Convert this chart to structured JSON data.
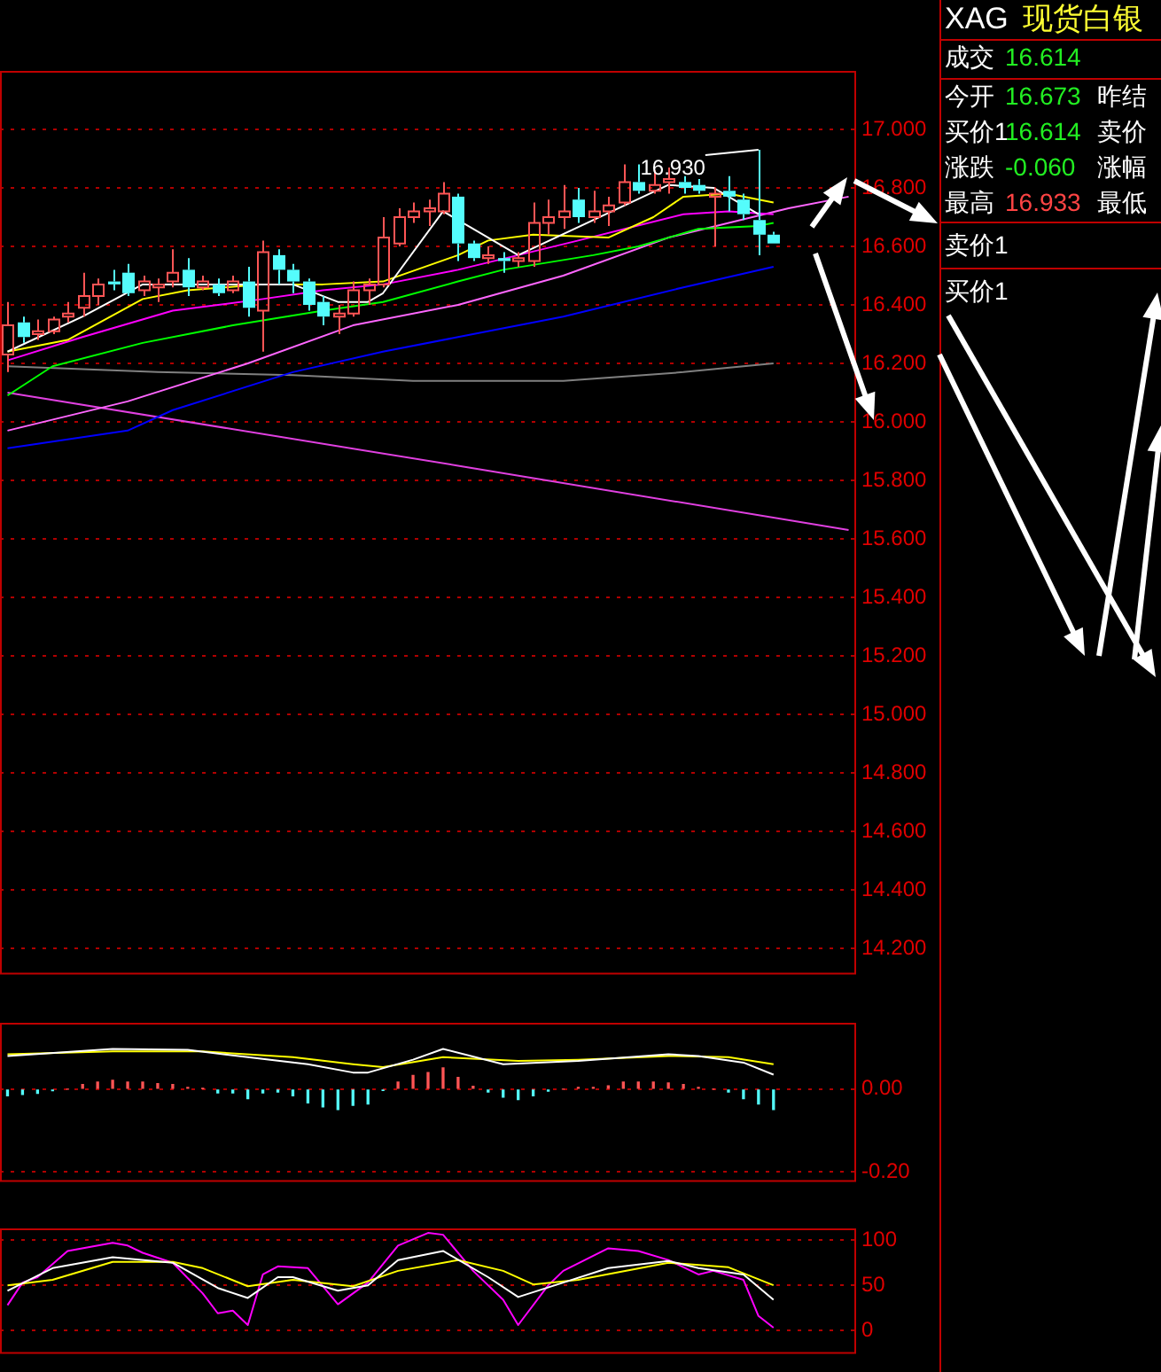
{
  "chart_data": [
    {
      "type": "candlestick",
      "categories": [
        null,
        null,
        null,
        null,
        null,
        null,
        null,
        null,
        null,
        null,
        null,
        null,
        null,
        null,
        null,
        null,
        null,
        null,
        null,
        null,
        null,
        null,
        null,
        null,
        null,
        null,
        null,
        null,
        null,
        null,
        null,
        null,
        null,
        null,
        null,
        null,
        null,
        null,
        null,
        null,
        null,
        null,
        null,
        null,
        null,
        null,
        null,
        null,
        null,
        null,
        null,
        null,
        null,
        null,
        null,
        null,
        null
      ],
      "ohlc": [
        [
          16.23,
          16.41,
          16.17,
          16.33
        ],
        [
          16.34,
          16.36,
          16.27,
          16.29
        ],
        [
          16.3,
          16.35,
          16.28,
          16.31
        ],
        [
          16.31,
          16.36,
          16.3,
          16.35
        ],
        [
          16.36,
          16.41,
          16.34,
          16.37
        ],
        [
          16.39,
          16.51,
          16.36,
          16.43
        ],
        [
          16.43,
          16.49,
          16.4,
          16.47
        ],
        [
          16.48,
          16.52,
          16.45,
          16.47
        ],
        [
          16.51,
          16.54,
          16.43,
          16.44
        ],
        [
          16.45,
          16.5,
          16.43,
          16.48
        ],
        [
          16.46,
          16.49,
          16.41,
          16.47
        ],
        [
          16.48,
          16.59,
          16.46,
          16.51
        ],
        [
          16.52,
          16.56,
          16.43,
          16.46
        ],
        [
          16.46,
          16.5,
          16.45,
          16.48
        ],
        [
          16.47,
          16.49,
          16.43,
          16.44
        ],
        [
          16.45,
          16.5,
          16.44,
          16.48
        ],
        [
          16.48,
          16.53,
          16.36,
          16.39
        ],
        [
          16.38,
          16.62,
          16.24,
          16.58
        ],
        [
          16.57,
          16.59,
          16.47,
          16.52
        ],
        [
          16.52,
          16.54,
          16.44,
          16.48
        ],
        [
          16.48,
          16.49,
          16.38,
          16.4
        ],
        [
          16.41,
          16.43,
          16.33,
          16.36
        ],
        [
          16.36,
          16.4,
          16.3,
          16.37
        ],
        [
          16.37,
          16.48,
          16.36,
          16.45
        ],
        [
          16.45,
          16.49,
          16.4,
          16.47
        ],
        [
          16.47,
          16.7,
          16.46,
          16.63
        ],
        [
          16.61,
          16.73,
          16.6,
          16.7
        ],
        [
          16.7,
          16.75,
          16.68,
          16.72
        ],
        [
          16.72,
          16.76,
          16.67,
          16.73
        ],
        [
          16.72,
          16.82,
          16.71,
          16.78
        ],
        [
          16.77,
          16.78,
          16.55,
          16.61
        ],
        [
          16.61,
          16.62,
          16.55,
          16.56
        ],
        [
          16.56,
          16.6,
          16.54,
          16.57
        ],
        [
          16.56,
          16.58,
          16.51,
          16.55
        ],
        [
          16.55,
          16.58,
          16.53,
          16.56
        ],
        [
          16.55,
          16.75,
          16.53,
          16.68
        ],
        [
          16.68,
          16.76,
          16.64,
          16.7
        ],
        [
          16.7,
          16.81,
          16.66,
          16.72
        ],
        [
          16.76,
          16.8,
          16.68,
          16.7
        ],
        [
          16.7,
          16.79,
          16.68,
          16.72
        ],
        [
          16.72,
          16.77,
          16.67,
          16.74
        ],
        [
          16.75,
          16.88,
          16.74,
          16.82
        ],
        [
          16.82,
          16.88,
          16.78,
          16.79
        ],
        [
          16.79,
          16.86,
          16.78,
          16.81
        ],
        [
          16.82,
          16.87,
          16.78,
          16.83
        ],
        [
          16.82,
          16.84,
          16.78,
          16.8
        ],
        [
          16.81,
          16.83,
          16.78,
          16.79
        ],
        [
          16.77,
          16.8,
          16.6,
          16.78
        ],
        [
          16.79,
          16.84,
          16.72,
          16.77
        ],
        [
          16.76,
          16.78,
          16.69,
          16.71
        ],
        [
          16.69,
          16.93,
          16.57,
          16.64
        ],
        [
          16.64,
          16.65,
          16.61,
          16.61
        ],
        null,
        null,
        null,
        null,
        null
      ],
      "colors": [
        "#ff5555",
        "#54fcfc",
        "#ff5555",
        "#ff5555",
        "#ff5555",
        "#ff5555",
        "#ff5555",
        "#54fcfc",
        "#54fcfc",
        "#ff5555",
        "#ff5555",
        "#ff5555",
        "#54fcfc",
        "#ff5555",
        "#54fcfc",
        "#ff5555",
        "#54fcfc",
        "#ff5555",
        "#54fcfc",
        "#54fcfc",
        "#54fcfc",
        "#54fcfc",
        "#ff5555",
        "#ff5555",
        "#ff5555",
        "#ff5555",
        "#ff5555",
        "#ff5555",
        "#ff5555",
        "#ff5555",
        "#54fcfc",
        "#54fcfc",
        "#ff5555",
        "#54fcfc",
        "#ff5555",
        "#ff5555",
        "#ff5555",
        "#ff5555",
        "#54fcfc",
        "#ff5555",
        "#ff5555",
        "#ff5555",
        "#54fcfc",
        "#ff5555",
        "#ff5555",
        "#54fcfc",
        "#54fcfc",
        "#ff5555",
        "#54fcfc",
        "#54fcfc",
        "#54fcfc",
        "#54fcfc",
        null,
        null,
        null,
        null,
        null
      ],
      "series": [
        {
          "type": "line",
          "color": "#ffffff",
          "values": [
            16.24,
            null,
            null,
            null,
            null,
            16.36,
            null,
            null,
            null,
            16.47,
            null,
            null,
            null,
            null,
            null,
            null,
            16.47,
            null,
            null,
            16.47,
            null,
            null,
            16.41,
            null,
            16.41,
            16.44,
            null,
            null,
            null,
            16.72,
            null,
            null,
            null,
            null,
            16.57,
            null,
            null,
            null,
            null,
            null,
            null,
            null,
            null,
            null,
            16.81,
            null,
            null,
            16.8,
            null,
            null,
            16.71,
            null,
            null,
            null,
            null,
            null,
            null
          ]
        },
        {
          "type": "line",
          "color": "#ffff00",
          "values": [
            16.24,
            null,
            null,
            null,
            16.28,
            null,
            null,
            null,
            null,
            16.42,
            null,
            null,
            16.45,
            null,
            null,
            null,
            null,
            16.47,
            null,
            null,
            null,
            16.47,
            null,
            null,
            null,
            16.48,
            null,
            null,
            null,
            null,
            16.57,
            null,
            16.62,
            null,
            null,
            16.64,
            null,
            null,
            null,
            null,
            16.63,
            null,
            null,
            16.7,
            null,
            16.77,
            null,
            null,
            16.78,
            null,
            null,
            16.75,
            null,
            null,
            null,
            null,
            null
          ]
        },
        {
          "type": "line",
          "color": "#ff00ff",
          "values": [
            16.21,
            null,
            null,
            null,
            null,
            16.29,
            null,
            null,
            null,
            null,
            null,
            16.38,
            null,
            null,
            null,
            null,
            null,
            16.42,
            null,
            null,
            null,
            16.45,
            null,
            null,
            null,
            16.47,
            null,
            null,
            null,
            null,
            16.52,
            null,
            null,
            null,
            16.57,
            null,
            null,
            null,
            16.62,
            null,
            null,
            null,
            null,
            null,
            null,
            16.71,
            null,
            null,
            16.72,
            null,
            null,
            16.71,
            null,
            null,
            null,
            null,
            null
          ]
        },
        {
          "type": "line",
          "color": "#00ff00",
          "values": [
            16.09,
            null,
            null,
            16.19,
            null,
            null,
            null,
            null,
            null,
            16.27,
            null,
            null,
            null,
            null,
            null,
            16.33,
            null,
            null,
            null,
            null,
            null,
            16.38,
            null,
            null,
            null,
            16.41,
            null,
            null,
            null,
            null,
            16.48,
            null,
            null,
            16.52,
            null,
            null,
            null,
            null,
            null,
            16.57,
            null,
            null,
            16.6,
            null,
            null,
            null,
            16.66,
            null,
            null,
            null,
            16.67,
            16.68,
            null,
            null,
            null,
            null,
            null
          ]
        },
        {
          "type": "line",
          "color": "#ff66ff",
          "values": [
            15.97,
            null,
            null,
            null,
            null,
            null,
            null,
            null,
            16.07,
            null,
            null,
            null,
            null,
            null,
            null,
            null,
            16.2,
            null,
            null,
            null,
            null,
            null,
            null,
            16.33,
            null,
            null,
            null,
            null,
            null,
            null,
            16.4,
            null,
            null,
            null,
            null,
            null,
            null,
            16.5,
            null,
            null,
            null,
            null,
            null,
            null,
            16.63,
            null,
            null,
            null,
            null,
            null,
            null,
            null,
            16.73,
            null,
            null,
            null,
            16.77
          ]
        },
        {
          "type": "line",
          "color": "#0000ff",
          "values": [
            15.91,
            null,
            null,
            null,
            null,
            null,
            null,
            null,
            15.97,
            null,
            null,
            16.04,
            null,
            null,
            null,
            null,
            null,
            null,
            null,
            16.17,
            null,
            null,
            null,
            null,
            null,
            16.24,
            null,
            null,
            null,
            null,
            16.29,
            null,
            null,
            null,
            null,
            null,
            null,
            16.36,
            null,
            null,
            null,
            null,
            null,
            null,
            null,
            16.46,
            null,
            null,
            null,
            null,
            null,
            16.53,
            null,
            null,
            null,
            null,
            null
          ]
        },
        {
          "type": "line",
          "color": "#808080",
          "values": [
            16.19,
            null,
            null,
            null,
            null,
            null,
            null,
            null,
            null,
            null,
            16.17,
            null,
            null,
            null,
            null,
            null,
            null,
            null,
            null,
            16.16,
            null,
            null,
            null,
            null,
            null,
            null,
            null,
            16.14,
            null,
            null,
            null,
            null,
            null,
            null,
            null,
            null,
            null,
            16.14,
            null,
            null,
            null,
            null,
            null,
            null,
            null,
            16.17,
            null,
            null,
            null,
            null,
            null,
            16.2,
            null,
            null,
            null,
            null,
            null
          ]
        },
        {
          "type": "line",
          "color": "#e040e0",
          "values": [
            16.1,
            null,
            null,
            null,
            null,
            null,
            null,
            null,
            null,
            null,
            null,
            null,
            null,
            null,
            null,
            null,
            null,
            null,
            null,
            null,
            null,
            null,
            null,
            null,
            null,
            null,
            null,
            null,
            null,
            null,
            15.85,
            null,
            null,
            null,
            null,
            null,
            null,
            null,
            null,
            null,
            null,
            null,
            null,
            null,
            null,
            null,
            null,
            null,
            null,
            null,
            null,
            null,
            null,
            null,
            null,
            null,
            15.63
          ]
        }
      ],
      "annotations": [
        "16.930"
      ],
      "ylim": [
        14.11,
        17.2
      ],
      "yticks": [
        {
          "value": 17,
          "label": "17.000"
        },
        {
          "value": 16.8,
          "label": "16.800"
        },
        {
          "value": 16.6,
          "label": "16.600"
        },
        {
          "value": 16.4,
          "label": "16.400"
        },
        {
          "value": 16.2,
          "label": "16.200"
        },
        {
          "value": 16,
          "label": "16.000"
        },
        {
          "value": 15.8,
          "label": "15.800"
        },
        {
          "value": 15.6,
          "label": "15.600"
        },
        {
          "value": 15.4,
          "label": "15.400"
        },
        {
          "value": 15.2,
          "label": "15.200"
        },
        {
          "value": 15,
          "label": "15.000"
        },
        {
          "value": 14.8,
          "label": "14.800"
        },
        {
          "value": 14.6,
          "label": "14.600"
        },
        {
          "value": 14.4,
          "label": "14.400"
        },
        {
          "value": 14.2,
          "label": "14.200"
        }
      ],
      "grid": "y",
      "tick_labels": "y"
    },
    {
      "type": "bar",
      "categories": [
        null,
        null,
        null,
        null,
        null,
        null,
        null,
        null,
        null,
        null,
        null,
        null,
        null,
        null,
        null,
        null,
        null,
        null,
        null,
        null,
        null,
        null,
        null,
        null,
        null,
        null,
        null,
        null,
        null,
        null,
        null,
        null,
        null,
        null,
        null,
        null,
        null,
        null,
        null,
        null,
        null,
        null,
        null,
        null,
        null,
        null,
        null,
        null,
        null,
        null,
        null,
        null,
        null,
        null,
        null,
        null,
        null
      ],
      "values": [
        -0.016,
        -0.013,
        -0.01,
        -0.004,
        0,
        0.011,
        0.017,
        0.021,
        0.017,
        0.017,
        0.013,
        0.011,
        0.004,
        0.001,
        -0.009,
        -0.009,
        -0.023,
        -0.009,
        -0.007,
        -0.016,
        -0.033,
        -0.043,
        -0.049,
        -0.039,
        -0.036,
        -0.003,
        0.017,
        0.033,
        0.04,
        0.051,
        0.028,
        0.007,
        -0.007,
        -0.019,
        -0.025,
        -0.016,
        -0.005,
        0,
        0.004,
        0.004,
        0.008,
        0.017,
        0.017,
        0.017,
        0.015,
        0.011,
        0.004,
        0,
        -0.007,
        -0.023,
        -0.036,
        -0.049,
        null,
        null,
        null,
        null,
        null
      ],
      "colors": [
        "#54fcfc",
        "#54fcfc",
        "#54fcfc",
        "#54fcfc",
        "#ff5555",
        "#ff5555",
        "#ff5555",
        "#ff5555",
        "#ff5555",
        "#ff5555",
        "#ff5555",
        "#ff5555",
        "#ff5555",
        "#ff5555",
        "#54fcfc",
        "#54fcfc",
        "#54fcfc",
        "#54fcfc",
        "#54fcfc",
        "#54fcfc",
        "#54fcfc",
        "#54fcfc",
        "#54fcfc",
        "#54fcfc",
        "#54fcfc",
        "#54fcfc",
        "#ff5555",
        "#ff5555",
        "#ff5555",
        "#ff5555",
        "#ff5555",
        "#ff5555",
        "#54fcfc",
        "#54fcfc",
        "#54fcfc",
        "#54fcfc",
        "#54fcfc",
        "#ff5555",
        "#ff5555",
        "#ff5555",
        "#ff5555",
        "#ff5555",
        "#ff5555",
        "#ff5555",
        "#ff5555",
        "#ff5555",
        "#ff5555",
        "#ff5555",
        "#54fcfc",
        "#54fcfc",
        "#54fcfc",
        "#54fcfc",
        null,
        null,
        null,
        null,
        null
      ],
      "series": [
        {
          "type": "line",
          "color": "#ffffff",
          "values": [
            0.08,
            null,
            null,
            null,
            null,
            null,
            null,
            0.097,
            null,
            null,
            null,
            null,
            0.095,
            null,
            null,
            null,
            0.077,
            null,
            null,
            null,
            0.06,
            null,
            null,
            0.04,
            0.04,
            null,
            null,
            0.071,
            null,
            0.097,
            null,
            null,
            null,
            0.06,
            null,
            null,
            null,
            null,
            0.068,
            null,
            null,
            null,
            null,
            null,
            0.084,
            null,
            0.08,
            null,
            null,
            0.064,
            null,
            0.035,
            null,
            null,
            null,
            null,
            null
          ]
        },
        {
          "type": "line",
          "color": "#ffff00",
          "values": [
            0.084,
            null,
            null,
            null,
            null,
            null,
            null,
            0.091,
            null,
            null,
            null,
            null,
            null,
            0.091,
            null,
            null,
            null,
            null,
            null,
            0.077,
            null,
            null,
            null,
            0.06,
            null,
            0.053,
            null,
            null,
            null,
            0.077,
            null,
            null,
            null,
            null,
            0.068,
            null,
            null,
            null,
            0.071,
            null,
            null,
            null,
            null,
            null,
            0.08,
            null,
            null,
            null,
            0.077,
            null,
            null,
            0.06,
            null,
            null,
            null,
            null,
            null
          ]
        }
      ],
      "ylim": [
        -0.224,
        0.16
      ],
      "yticks": [
        {
          "value": 0,
          "label": "0.00"
        },
        {
          "value": -0.2,
          "label": "-0.20"
        }
      ],
      "grid": "y",
      "tick_labels": "y"
    },
    {
      "type": "line",
      "categories": [
        null,
        null,
        null,
        null,
        null,
        null,
        null,
        null,
        null,
        null,
        null,
        null,
        null,
        null,
        null,
        null,
        null,
        null,
        null,
        null,
        null,
        null,
        null,
        null,
        null,
        null,
        null,
        null,
        null,
        null,
        null,
        null,
        null,
        null,
        null,
        null,
        null,
        null,
        null,
        null,
        null,
        null,
        null,
        null,
        null,
        null,
        null,
        null,
        null,
        null,
        null,
        null,
        null,
        null,
        null,
        null,
        null
      ],
      "series": [
        {
          "color": "#ffffff",
          "values": [
            44,
            null,
            null,
            69,
            null,
            null,
            null,
            81,
            null,
            null,
            null,
            75,
            null,
            null,
            47,
            null,
            36,
            null,
            59,
            59,
            null,
            null,
            44,
            null,
            50,
            null,
            78,
            null,
            null,
            88,
            null,
            null,
            59,
            null,
            37,
            null,
            null,
            53,
            null,
            null,
            69,
            null,
            null,
            null,
            77,
            null,
            69,
            null,
            null,
            62,
            null,
            34,
            null,
            null,
            null,
            null,
            null
          ]
        },
        {
          "color": "#ffff00",
          "values": [
            50,
            null,
            null,
            56,
            null,
            null,
            null,
            76,
            null,
            null,
            null,
            76,
            null,
            69,
            null,
            null,
            49,
            null,
            null,
            56,
            null,
            null,
            null,
            49,
            null,
            null,
            66,
            null,
            null,
            null,
            78,
            null,
            null,
            66,
            null,
            51,
            null,
            null,
            56,
            null,
            null,
            null,
            null,
            null,
            75,
            null,
            null,
            null,
            70,
            null,
            null,
            50,
            null,
            null,
            null,
            null,
            null
          ]
        },
        {
          "color": "#ff00ff",
          "values": [
            28,
            53,
            59,
            null,
            88,
            null,
            null,
            97,
            94,
            86,
            null,
            75,
            null,
            41,
            19,
            22,
            6,
            62,
            71,
            null,
            69,
            null,
            29,
            null,
            53,
            null,
            94,
            null,
            108,
            106,
            null,
            66,
            null,
            34,
            6,
            null,
            50,
            66,
            null,
            null,
            91,
            null,
            88,
            null,
            78,
            null,
            62,
            66,
            null,
            56,
            16,
            3,
            null,
            null,
            null,
            null,
            null
          ]
        }
      ],
      "ylim": [
        -26,
        113
      ],
      "yticks": [
        0,
        50,
        100
      ],
      "grid": "y",
      "tick_labels": "y"
    },
    {
      "type": "other",
      "title": "XAG",
      "subtitle": "现货白银",
      "annotations": [
        "成交",
        "16.614",
        "今开",
        "16.673",
        "昨结",
        "买价1",
        "16.614",
        "卖价",
        "涨跌",
        "-0.060",
        "涨幅",
        "最高",
        "16.933",
        "最低",
        "卖价1",
        "买价1"
      ]
    }
  ]
}
